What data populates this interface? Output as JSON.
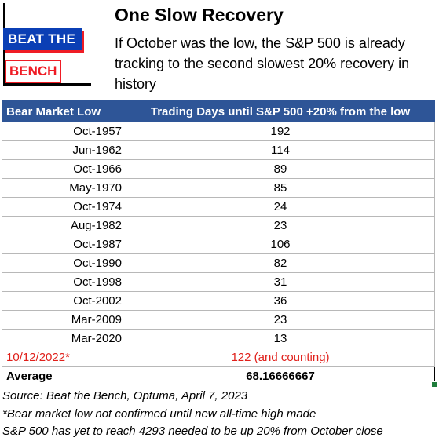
{
  "logo": {
    "top_text": "BEAT THE",
    "bottom_text": "BENCH"
  },
  "header": {
    "title": "One Slow Recovery",
    "subtitle": "If October was the low, the S&P 500 is already tracking to the second slowest 20% recovery in history"
  },
  "table": {
    "columns": [
      "Bear Market Low",
      "Trading Days until S&P 500 +20% from the low"
    ],
    "rows": [
      {
        "low": "Oct-1957",
        "days": "192"
      },
      {
        "low": "Jun-1962",
        "days": "114"
      },
      {
        "low": "Oct-1966",
        "days": "89"
      },
      {
        "low": "May-1970",
        "days": "85"
      },
      {
        "low": "Oct-1974",
        "days": "24"
      },
      {
        "low": "Aug-1982",
        "days": "23"
      },
      {
        "low": "Oct-1987",
        "days": "106"
      },
      {
        "low": "Oct-1990",
        "days": "82"
      },
      {
        "low": "Oct-1998",
        "days": "31"
      },
      {
        "low": "Oct-2002",
        "days": "36"
      },
      {
        "low": "Mar-2009",
        "days": "23"
      },
      {
        "low": "Mar-2020",
        "days": "13"
      }
    ],
    "current": {
      "low": "10/12/2022*",
      "days": "122 (and counting)"
    },
    "average": {
      "label": "Average",
      "value": "68.16666667"
    }
  },
  "notes": [
    "Source: Beat the Bench, Optuma, April 7, 2023",
    "*Bear market low not confirmed until new all-time high made",
    "S&P 500 has yet to reach 4293 needed to be up 20% from October close"
  ],
  "colors": {
    "header_bg": "#2e5597",
    "highlight_red": "#e0201b",
    "logo_blue": "#0b3fb5",
    "logo_red": "#ef1c25"
  }
}
